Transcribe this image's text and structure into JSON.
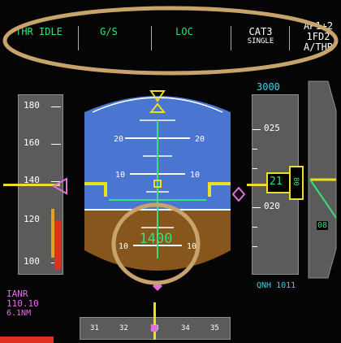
{
  "fma": {
    "col1": "THR IDLE",
    "col2": "G/S",
    "col3": "LOC",
    "col4_line1": "CAT3",
    "col4_line2": "SINGLE",
    "col5_line1": "AP1+2",
    "col5_line2": "1FD2",
    "col5_line3": "A/THR"
  },
  "speed_tape": {
    "labels": [
      "180",
      "160",
      "140",
      "120",
      "100"
    ]
  },
  "attitude": {
    "pitch_labels": [
      "20",
      "20",
      "10",
      "10",
      "10",
      "10"
    ]
  },
  "radio_altitude": "1400",
  "altitude_tape": {
    "selected_altitude": "3000",
    "labels": [
      "025",
      "020"
    ],
    "current_hundreds": "21",
    "current_tens": "80"
  },
  "qnh": "QNH 1011",
  "ils": {
    "ident": "IANR",
    "frequency": "110.10",
    "dme": "6.1NM"
  },
  "heading": {
    "labels": [
      "31",
      "32",
      "33",
      "34",
      "35"
    ]
  },
  "vertical_speed": {
    "value": "08"
  },
  "colors": {
    "sky": "#4a76d2",
    "ground": "#86561c",
    "annotation": "#c9a36c",
    "speed_trend": "#e8e8e8",
    "red_band": "#e03020"
  }
}
